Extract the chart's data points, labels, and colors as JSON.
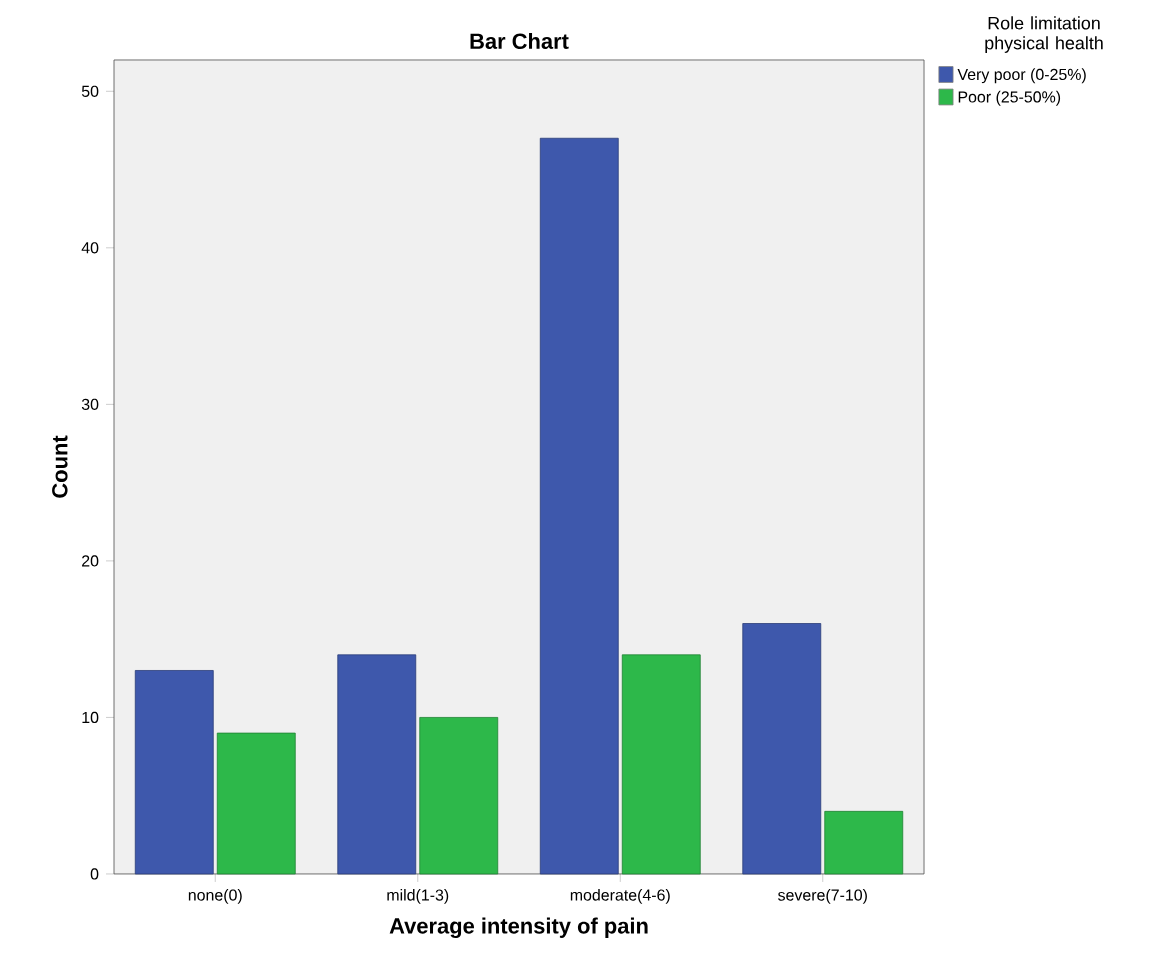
{
  "chart_data": {
    "type": "bar",
    "title": "Bar Chart",
    "xlabel": "Average intensity of pain",
    "ylabel": "Count",
    "legend_title": "Role limitation physical health",
    "categories": [
      "none(0)",
      "mild(1-3)",
      "moderate(4-6)",
      "severe(7-10)"
    ],
    "series": [
      {
        "name": "Very poor (0-25%)",
        "color": "#3e58ac",
        "values": [
          13,
          14,
          47,
          16
        ]
      },
      {
        "name": "Poor (25-50%)",
        "color": "#2db84a",
        "values": [
          9,
          10,
          14,
          4
        ]
      }
    ],
    "ylim": [
      0,
      52
    ],
    "yticks": [
      0,
      10,
      20,
      30,
      40,
      50
    ],
    "grid": false,
    "legend": "right"
  }
}
